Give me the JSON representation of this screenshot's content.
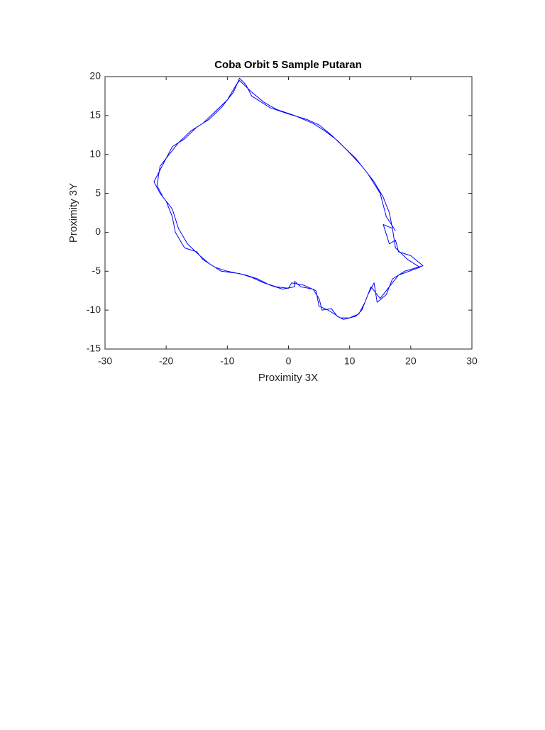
{
  "chart_data": {
    "type": "line",
    "title": "Coba Orbit 5 Sample Putaran",
    "x_label": "Proximity 3X",
    "y_label": "Proximity 3Y",
    "color": "#0000ff",
    "xlim": [
      -30,
      30
    ],
    "xticks": [
      -30,
      -20,
      -10,
      0,
      10,
      20,
      30
    ],
    "ylim": [
      -15,
      20
    ],
    "yticks": [
      -15,
      -10,
      -5,
      0,
      5,
      10,
      15,
      20
    ],
    "x": [
      17.5,
      16,
      15,
      13,
      11,
      9,
      7,
      5,
      3,
      0,
      -3,
      -5,
      -6,
      -7,
      -8,
      -9,
      -11,
      -13,
      -15,
      -17,
      -19,
      -20,
      -21,
      -22,
      -21,
      -20,
      -19,
      -18.5,
      -17,
      -15,
      -14,
      -12,
      -10,
      -7,
      -5,
      -3,
      -1,
      1,
      1,
      2,
      4,
      5,
      5.5,
      7,
      8,
      9,
      11,
      12,
      13,
      14,
      14.5,
      16,
      17,
      19,
      22,
      20,
      18,
      17.5,
      16.5,
      15.5,
      17,
      16.5,
      15.5,
      14,
      12,
      10,
      8,
      6,
      4,
      1,
      -2,
      -4,
      -6,
      -8,
      -8.5,
      -10,
      -12,
      -14,
      -16,
      -18,
      -19.5,
      -21,
      -21.5,
      -20.5,
      -19,
      -18,
      -16.5,
      -14.5,
      -13,
      -11,
      -8,
      -6,
      -4,
      -2,
      0,
      0.5,
      2.5,
      4.5,
      5,
      6.5,
      8.5,
      10,
      11.5,
      12.5,
      13.5,
      14,
      15,
      16.5,
      18,
      21.5,
      19.5,
      17.5,
      17
    ],
    "values": [
      0.2,
      2,
      5,
      7.5,
      9.5,
      11,
      12.5,
      13.8,
      14.5,
      15.2,
      16,
      17,
      17.5,
      19,
      19.8,
      18,
      16,
      14.5,
      13.5,
      12,
      11,
      9.5,
      8,
      6.5,
      5,
      4,
      2,
      0,
      -2,
      -2.5,
      -3.5,
      -4.5,
      -5,
      -5.5,
      -6,
      -6.8,
      -7.3,
      -7,
      -6.3,
      -7,
      -7.3,
      -8.5,
      -10,
      -9.8,
      -10.8,
      -11.2,
      -10.8,
      -10,
      -8,
      -6.5,
      -9,
      -8,
      -6,
      -5,
      -4.3,
      -3,
      -2.5,
      -1,
      -1.5,
      1,
      0.5,
      2.5,
      4.5,
      6.5,
      8.5,
      10.2,
      11.8,
      13,
      14,
      15,
      15.8,
      16.7,
      18,
      19.5,
      19,
      17,
      15.5,
      14,
      13,
      11.5,
      10,
      8.5,
      6,
      4.5,
      3,
      0.5,
      -1.5,
      -3,
      -4,
      -5,
      -5.3,
      -5.8,
      -6.5,
      -7,
      -7.2,
      -6.5,
      -6.8,
      -7.5,
      -9.5,
      -10,
      -11,
      -11,
      -10.5,
      -9,
      -7,
      -7.5,
      -8.5,
      -7,
      -5.5,
      -4.5,
      -3.5,
      -2,
      0.5
    ]
  }
}
